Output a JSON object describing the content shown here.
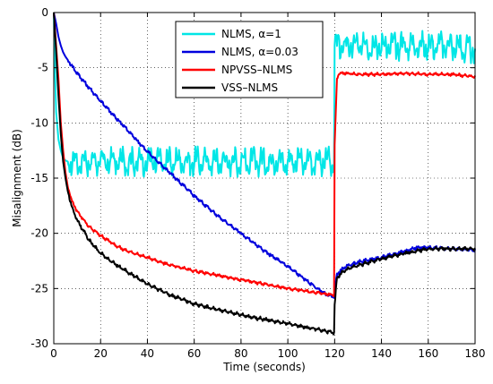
{
  "chart_data": {
    "type": "line",
    "title": "",
    "xlabel": "Time (seconds)",
    "ylabel": "Misalignment (dB)",
    "xlim": [
      0,
      180
    ],
    "ylim": [
      -30,
      0
    ],
    "xticks": [
      0,
      20,
      40,
      60,
      80,
      100,
      120,
      140,
      160,
      180
    ],
    "yticks": [
      0,
      -5,
      -10,
      -15,
      -20,
      -25,
      -30
    ],
    "grid": true,
    "legend_position": "top-right",
    "series": [
      {
        "name": "NLMS, α=1",
        "color": "#00e6e6",
        "noise": 1.2,
        "noise_period": 4.0,
        "x": [
          0,
          0.5,
          1,
          2,
          3,
          4,
          5,
          6,
          7,
          8,
          9,
          10,
          15,
          20,
          30,
          40,
          50,
          60,
          70,
          80,
          90,
          100,
          110,
          119.8,
          120,
          121,
          125,
          130,
          140,
          150,
          160,
          170,
          180
        ],
        "y": [
          0,
          -5,
          -9,
          -11.5,
          -12.5,
          -13.2,
          -13.4,
          -13.5,
          -13.5,
          -13.5,
          -13.5,
          -13.5,
          -13.5,
          -13.5,
          -13.5,
          -13.5,
          -13.5,
          -13.5,
          -13.5,
          -13.5,
          -13.5,
          -13.5,
          -13.5,
          -13.5,
          -3.0,
          -3.0,
          -3.0,
          -3.0,
          -3.0,
          -3.0,
          -3.0,
          -3.0,
          -3.5
        ]
      },
      {
        "name": "NLMS, α=0.03",
        "color": "#0000dd",
        "noise": 0.15,
        "noise_period": 2.5,
        "x": [
          0,
          1,
          2,
          3,
          4,
          5,
          7,
          10,
          15,
          20,
          25,
          30,
          40,
          50,
          60,
          70,
          80,
          90,
          100,
          110,
          116,
          119.8,
          120,
          121,
          123,
          125,
          130,
          140,
          150,
          155,
          160,
          170,
          180
        ],
        "y": [
          0,
          -1.0,
          -2.2,
          -3.0,
          -3.6,
          -4.0,
          -4.6,
          -5.5,
          -6.8,
          -8.0,
          -9.2,
          -10.3,
          -12.6,
          -14.6,
          -16.6,
          -18.4,
          -20.0,
          -21.6,
          -23.0,
          -24.6,
          -25.5,
          -25.8,
          -25.0,
          -23.7,
          -23.3,
          -23.0,
          -22.6,
          -22.2,
          -21.6,
          -21.3,
          -21.3,
          -21.4,
          -21.5
        ]
      },
      {
        "name": "NPVSS–NLMS",
        "color": "#ff0000",
        "noise": 0.12,
        "noise_period": 2.5,
        "x": [
          0,
          1,
          2,
          3,
          4,
          5,
          6,
          8,
          10,
          15,
          20,
          25,
          30,
          40,
          50,
          60,
          70,
          80,
          90,
          100,
          110,
          119.8,
          120,
          121,
          122,
          125,
          130,
          140,
          150,
          160,
          170,
          180
        ],
        "y": [
          0,
          -3.0,
          -6.0,
          -10.0,
          -12.5,
          -14.5,
          -15.8,
          -17.2,
          -18.0,
          -19.4,
          -20.2,
          -20.9,
          -21.5,
          -22.2,
          -22.9,
          -23.4,
          -23.8,
          -24.2,
          -24.6,
          -25.0,
          -25.3,
          -25.6,
          -12.0,
          -6.0,
          -5.5,
          -5.5,
          -5.6,
          -5.6,
          -5.5,
          -5.6,
          -5.6,
          -5.8
        ]
      },
      {
        "name": "VSS–NLMS",
        "color": "#000000",
        "noise": 0.15,
        "noise_period": 2.5,
        "x": [
          0,
          1,
          2,
          3,
          4,
          5,
          6,
          8,
          10,
          15,
          20,
          25,
          30,
          40,
          50,
          60,
          70,
          80,
          90,
          100,
          110,
          115,
          119.8,
          120,
          121,
          123,
          125,
          130,
          140,
          150,
          160,
          170,
          180
        ],
        "y": [
          0,
          -3.5,
          -7.5,
          -11.0,
          -13.5,
          -15.0,
          -16.2,
          -17.8,
          -18.8,
          -20.6,
          -21.8,
          -22.6,
          -23.3,
          -24.6,
          -25.6,
          -26.4,
          -26.9,
          -27.4,
          -27.8,
          -28.2,
          -28.6,
          -28.8,
          -29.0,
          -26.5,
          -24.0,
          -23.6,
          -23.3,
          -22.9,
          -22.3,
          -21.8,
          -21.4,
          -21.4,
          -21.4
        ]
      }
    ]
  }
}
